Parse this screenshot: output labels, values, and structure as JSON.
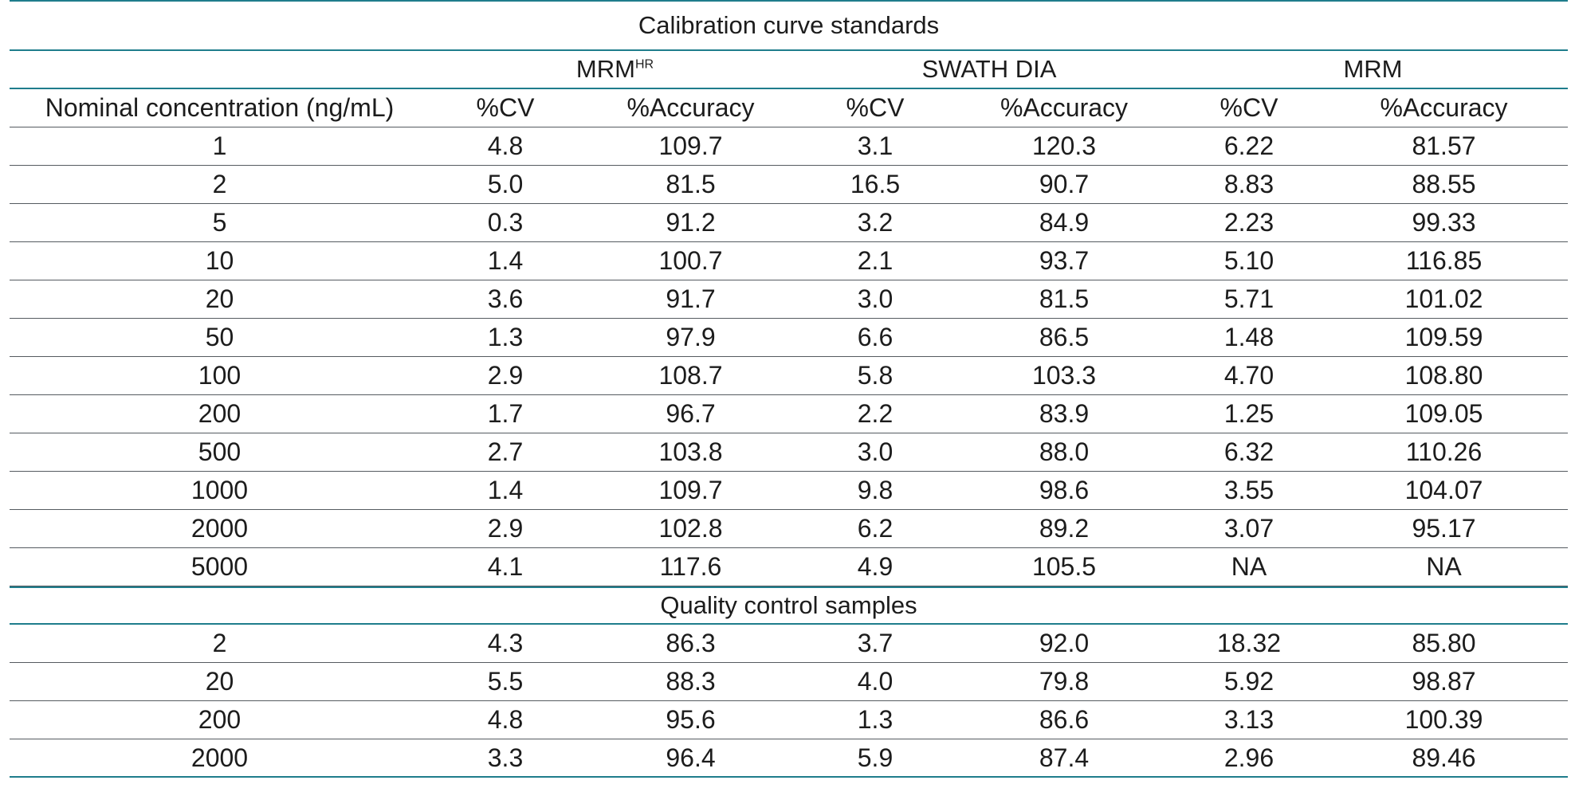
{
  "table": {
    "title": "Calibration curve standards",
    "groups": {
      "mrmhr_base": "MRM",
      "mrmhr_sup": "HR",
      "swath": "SWATH DIA",
      "mrm": "MRM"
    },
    "headers": [
      "Nominal concentration (ng/mL)",
      "%CV",
      "%Accuracy",
      "%CV",
      "%Accuracy",
      "%CV",
      "%Accuracy"
    ],
    "calibration_rows": [
      [
        "1",
        "4.8",
        "109.7",
        "3.1",
        "120.3",
        "6.22",
        "81.57"
      ],
      [
        "2",
        "5.0",
        "81.5",
        "16.5",
        "90.7",
        "8.83",
        "88.55"
      ],
      [
        "5",
        "0.3",
        "91.2",
        "3.2",
        "84.9",
        "2.23",
        "99.33"
      ],
      [
        "10",
        "1.4",
        "100.7",
        "2.1",
        "93.7",
        "5.10",
        "116.85"
      ],
      [
        "20",
        "3.6",
        "91.7",
        "3.0",
        "81.5",
        "5.71",
        "101.02"
      ],
      [
        "50",
        "1.3",
        "97.9",
        "6.6",
        "86.5",
        "1.48",
        "109.59"
      ],
      [
        "100",
        "2.9",
        "108.7",
        "5.8",
        "103.3",
        "4.70",
        "108.80"
      ],
      [
        "200",
        "1.7",
        "96.7",
        "2.2",
        "83.9",
        "1.25",
        "109.05"
      ],
      [
        "500",
        "2.7",
        "103.8",
        "3.0",
        "88.0",
        "6.32",
        "110.26"
      ],
      [
        "1000",
        "1.4",
        "109.7",
        "9.8",
        "98.6",
        "3.55",
        "104.07"
      ],
      [
        "2000",
        "2.9",
        "102.8",
        "6.2",
        "89.2",
        "3.07",
        "95.17"
      ],
      [
        "5000",
        "4.1",
        "117.6",
        "4.9",
        "105.5",
        "NA",
        "NA"
      ]
    ],
    "qc_title": "Quality control samples",
    "qc_rows": [
      [
        "2",
        "4.3",
        "86.3",
        "3.7",
        "92.0",
        "18.32",
        "85.80"
      ],
      [
        "20",
        "5.5",
        "88.3",
        "4.0",
        "79.8",
        "5.92",
        "98.87"
      ],
      [
        "200",
        "4.8",
        "95.6",
        "1.3",
        "86.6",
        "3.13",
        "100.39"
      ],
      [
        "2000",
        "3.3",
        "96.4",
        "5.9",
        "87.4",
        "2.96",
        "89.46"
      ]
    ],
    "colors": {
      "rule_teal": "#1f7d8c",
      "rule_gray": "#555b60",
      "text": "#1c1c1c"
    }
  }
}
